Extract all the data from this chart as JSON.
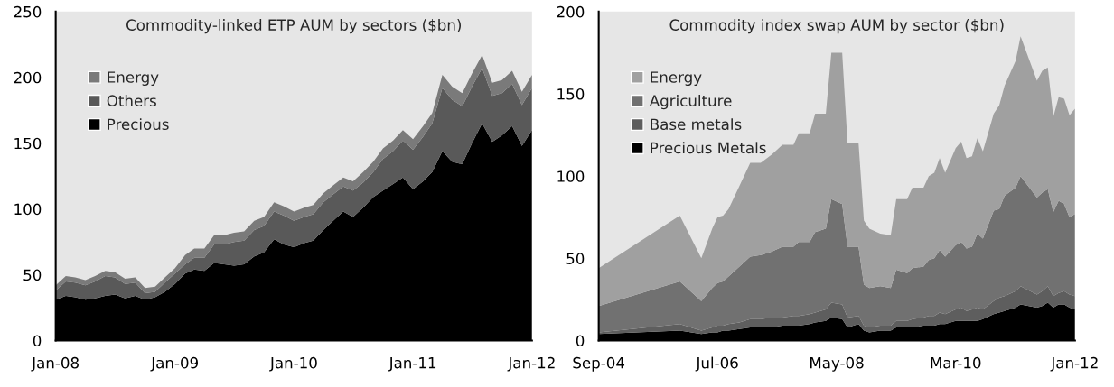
{
  "chart_data": [
    {
      "type": "area",
      "stacked": true,
      "title": "Commodity-linked ETP AUM by sectors ($bn)",
      "x": [
        "2008-01",
        "2008-02",
        "2008-03",
        "2008-04",
        "2008-05",
        "2008-06",
        "2008-07",
        "2008-08",
        "2008-09",
        "2008-10",
        "2008-11",
        "2008-12",
        "2009-01",
        "2009-02",
        "2009-03",
        "2009-04",
        "2009-05",
        "2009-06",
        "2009-07",
        "2009-08",
        "2009-09",
        "2009-10",
        "2009-11",
        "2009-12",
        "2010-01",
        "2010-02",
        "2010-03",
        "2010-04",
        "2010-05",
        "2010-06",
        "2010-07",
        "2010-08",
        "2010-09",
        "2010-10",
        "2010-11",
        "2010-12",
        "2011-01",
        "2011-02",
        "2011-03",
        "2011-04",
        "2011-05",
        "2011-06",
        "2011-07",
        "2011-08",
        "2011-09",
        "2011-10",
        "2011-11",
        "2011-12",
        "2012-01"
      ],
      "series": [
        {
          "name": "Precious",
          "color": "#000000",
          "values": [
            31,
            34,
            33,
            31,
            32,
            34,
            35,
            32,
            34,
            31,
            33,
            37,
            43,
            51,
            54,
            53,
            59,
            58,
            57,
            58,
            64,
            67,
            77,
            73,
            71,
            74,
            76,
            84,
            91,
            98,
            94,
            101,
            109,
            114,
            119,
            124,
            115,
            121,
            128,
            144,
            136,
            134,
            150,
            165,
            151,
            156,
            163,
            148,
            160
          ]
        },
        {
          "name": "Others",
          "color": "#595959",
          "values": [
            7,
            11,
            11,
            11,
            13,
            15,
            13,
            11,
            10,
            5,
            4,
            7,
            8,
            7,
            9,
            10,
            14,
            15,
            18,
            18,
            20,
            20,
            21,
            22,
            20,
            20,
            20,
            21,
            20,
            19,
            20,
            19,
            19,
            24,
            25,
            28,
            30,
            34,
            37,
            48,
            47,
            44,
            43,
            42,
            35,
            32,
            32,
            31,
            32
          ]
        },
        {
          "name": "Energy",
          "color": "#7a7a7a",
          "values": [
            4,
            4,
            4,
            4,
            4,
            4,
            4,
            4,
            4,
            4,
            4,
            4,
            4,
            7,
            7,
            7,
            7,
            7,
            7,
            7,
            7,
            7,
            7,
            7,
            7,
            7,
            7,
            7,
            7,
            7,
            7,
            8,
            8,
            8,
            8,
            8,
            8,
            8,
            8,
            10,
            10,
            10,
            10,
            10,
            10,
            10,
            10,
            10,
            10
          ]
        }
      ],
      "ylim": [
        0,
        250
      ],
      "yticks": [
        0,
        50,
        100,
        150,
        200,
        250
      ],
      "xlim": [
        "2008-01",
        "2012-01"
      ],
      "xticks": [
        {
          "value": "2008-01",
          "label": "Jan-08"
        },
        {
          "value": "2009-01",
          "label": "Jan-09"
        },
        {
          "value": "2010-01",
          "label": "Jan-10"
        },
        {
          "value": "2011-01",
          "label": "Jan-11"
        },
        {
          "value": "2012-01",
          "label": "Jan-12"
        }
      ],
      "grid": false,
      "legend": "top left"
    },
    {
      "type": "area",
      "stacked": true,
      "title": "Commodity index swap AUM by sector ($bn)",
      "x": [
        "2004-09",
        "2005-12",
        "2006-04",
        "2006-06",
        "2006-07",
        "2006-08",
        "2006-09",
        "2006-11",
        "2007-01",
        "2007-03",
        "2007-05",
        "2007-07",
        "2007-09",
        "2007-10",
        "2007-12",
        "2008-01",
        "2008-03",
        "2008-04",
        "2008-06",
        "2008-07",
        "2008-09",
        "2008-10",
        "2008-11",
        "2009-01",
        "2009-03",
        "2009-04",
        "2009-06",
        "2009-07",
        "2009-09",
        "2009-10",
        "2009-11",
        "2009-12",
        "2010-01",
        "2010-03",
        "2010-04",
        "2010-05",
        "2010-06",
        "2010-07",
        "2010-08",
        "2010-10",
        "2010-11",
        "2010-12",
        "2011-02",
        "2011-03",
        "2011-06",
        "2011-07",
        "2011-08",
        "2011-09",
        "2011-10",
        "2011-11",
        "2011-12",
        "2012-01"
      ],
      "series": [
        {
          "name": "Precious Metals",
          "color": "#000000",
          "values": [
            4,
            6,
            4,
            5,
            5,
            6,
            6,
            7,
            8,
            8,
            8,
            9,
            9,
            9,
            10,
            11,
            12,
            14,
            13,
            8,
            10,
            6,
            5,
            6,
            6,
            8,
            8,
            8,
            9,
            9,
            9,
            10,
            10,
            12,
            12,
            12,
            12,
            12,
            13,
            16,
            17,
            18,
            20,
            22,
            20,
            21,
            23,
            20,
            22,
            22,
            20,
            19
          ]
        },
        {
          "name": "Base metals",
          "color": "#5e5e5e",
          "values": [
            1,
            4,
            2,
            3,
            4,
            3,
            4,
            4,
            5,
            5,
            6,
            5,
            6,
            6,
            6,
            6,
            7,
            9,
            9,
            6,
            5,
            3,
            3,
            3,
            3,
            4,
            4,
            5,
            5,
            6,
            6,
            7,
            6,
            7,
            8,
            6,
            7,
            8,
            6,
            8,
            9,
            9,
            10,
            11,
            8,
            9,
            10,
            7,
            7,
            8,
            8,
            8
          ]
        },
        {
          "name": "Agriculture",
          "color": "#717171",
          "values": [
            16,
            26,
            18,
            24,
            26,
            27,
            29,
            34,
            38,
            39,
            40,
            43,
            42,
            45,
            44,
            49,
            49,
            63,
            61,
            43,
            42,
            25,
            24,
            24,
            23,
            31,
            29,
            31,
            31,
            34,
            35,
            38,
            35,
            39,
            40,
            38,
            38,
            45,
            43,
            55,
            54,
            61,
            63,
            67,
            59,
            60,
            59,
            51,
            56,
            53,
            47,
            50
          ]
        },
        {
          "name": "Energy",
          "color": "#a0a0a0",
          "values": [
            23,
            40,
            26,
            36,
            40,
            40,
            41,
            49,
            57,
            56,
            59,
            62,
            62,
            66,
            66,
            72,
            70,
            89,
            92,
            63,
            63,
            39,
            36,
            32,
            32,
            43,
            45,
            49,
            48,
            51,
            52,
            56,
            51,
            59,
            61,
            55,
            55,
            58,
            53,
            59,
            63,
            67,
            77,
            85,
            71,
            74,
            74,
            58,
            63,
            64,
            62,
            64
          ]
        }
      ],
      "ylim": [
        0,
        200
      ],
      "yticks": [
        0,
        50,
        100,
        150,
        200
      ],
      "xlim": [
        "2004-09",
        "2012-01"
      ],
      "xticks": [
        {
          "value": "2004-09",
          "label": "Sep-04"
        },
        {
          "value": "2006-07",
          "label": "Jul-06"
        },
        {
          "value": "2008-05",
          "label": "May-08"
        },
        {
          "value": "2010-03",
          "label": "Mar-10"
        },
        {
          "value": "2012-01",
          "label": "Jan-12"
        }
      ],
      "grid": false,
      "legend": "top left"
    }
  ]
}
